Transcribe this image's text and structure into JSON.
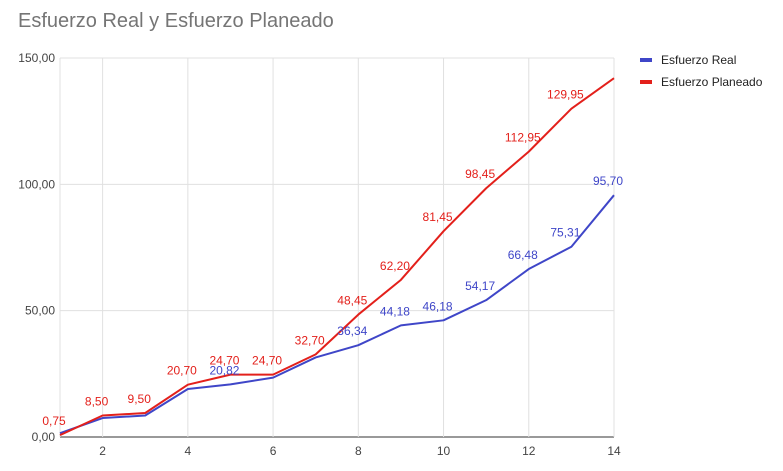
{
  "chart_data": {
    "type": "line",
    "title": "Esfuerzo Real y Esfuerzo Planeado",
    "xlabel": "",
    "ylabel": "",
    "x": [
      1,
      2,
      3,
      4,
      5,
      6,
      7,
      8,
      9,
      10,
      11,
      12,
      13,
      14
    ],
    "xticks": [
      "2",
      "4",
      "6",
      "8",
      "10",
      "12",
      "14"
    ],
    "yticks": [
      "0,00",
      "50,00",
      "100,00",
      "150,00"
    ],
    "ylim": [
      0,
      150
    ],
    "xlim": [
      1,
      14
    ],
    "grid": true,
    "legend": "right",
    "series": [
      {
        "name": "Esfuerzo Real",
        "color": "#3f46c8",
        "values": [
          1.5,
          7.5,
          8.5,
          19.0,
          20.82,
          23.5,
          31.5,
          36.34,
          44.18,
          46.18,
          54.17,
          66.48,
          75.31,
          95.7
        ],
        "labels": [
          "",
          "",
          "",
          "",
          "20,82",
          "",
          "",
          "36,34",
          "44,18",
          "46,18",
          "54,17",
          "66,48",
          "75,31",
          "95,70"
        ]
      },
      {
        "name": "Esfuerzo Planeado",
        "color": "#e3201b",
        "values": [
          0.75,
          8.5,
          9.5,
          20.7,
          24.7,
          24.7,
          32.7,
          48.45,
          62.2,
          81.45,
          98.45,
          112.95,
          129.95,
          142.0
        ],
        "labels": [
          "0,75",
          "8,50",
          "9,50",
          "20,70",
          "24,70",
          "24,70",
          "32,70",
          "48,45",
          "62,20",
          "81,45",
          "98,45",
          "112,95",
          "129,95",
          ""
        ]
      }
    ]
  }
}
